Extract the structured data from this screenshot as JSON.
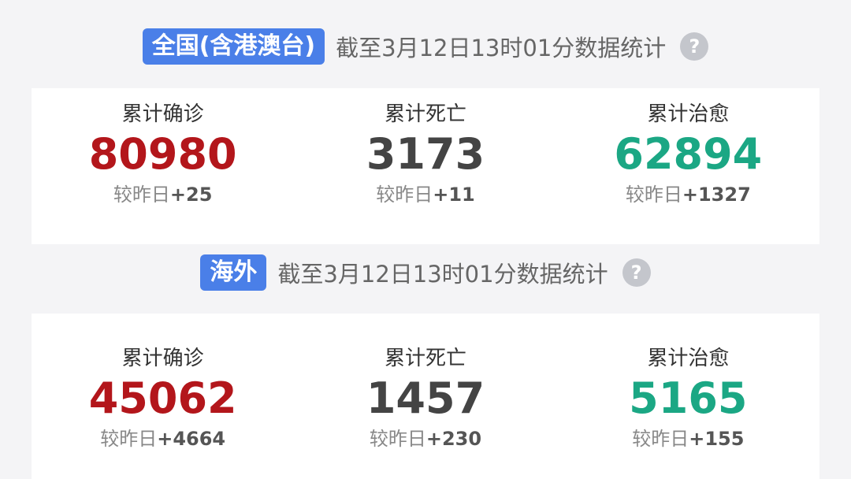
{
  "colors": {
    "confirmed": "#b3161b",
    "death": "#444444",
    "cured": "#1ba784",
    "badge": "#4a7fe8"
  },
  "sections": [
    {
      "badge": "全国(含港澳台)",
      "since": "截至3月12日13时01分数据统计",
      "help_icon": "question-circle-icon",
      "stats": [
        {
          "label": "累计确诊",
          "value": "80980",
          "delta_prefix": "较昨日",
          "delta": "+25"
        },
        {
          "label": "累计死亡",
          "value": "3173",
          "delta_prefix": "较昨日",
          "delta": "+11"
        },
        {
          "label": "累计治愈",
          "value": "62894",
          "delta_prefix": "较昨日",
          "delta": "+1327"
        }
      ]
    },
    {
      "badge": "海外",
      "since": "截至3月12日13时01分数据统计",
      "help_icon": "question-circle-icon",
      "stats": [
        {
          "label": "累计确诊",
          "value": "45062",
          "delta_prefix": "较昨日",
          "delta": "+4664"
        },
        {
          "label": "累计死亡",
          "value": "1457",
          "delta_prefix": "较昨日",
          "delta": "+230"
        },
        {
          "label": "累计治愈",
          "value": "5165",
          "delta_prefix": "较昨日",
          "delta": "+155"
        }
      ]
    }
  ]
}
